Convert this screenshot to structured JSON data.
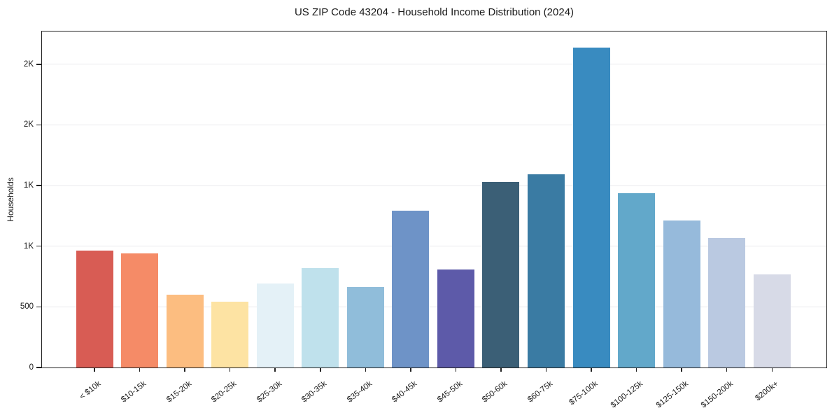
{
  "chart_data": {
    "type": "bar",
    "title": "US ZIP Code 43204 - Household Income Distribution (2024)",
    "xlabel": "",
    "ylabel": "Households",
    "categories": [
      "< $10k",
      "$10-15k",
      "$15-20k",
      "$20-25k",
      "$25-30k",
      "$30-35k",
      "$35-40k",
      "$40-45k",
      "$45-50k",
      "$50-60k",
      "$60-75k",
      "$75-100k",
      "$100-125k",
      "$125-150k",
      "$150-200k",
      "$200k+"
    ],
    "values": [
      965,
      940,
      600,
      545,
      690,
      820,
      665,
      1290,
      810,
      1530,
      1595,
      2640,
      1435,
      1210,
      1070,
      765
    ],
    "bar_colors": [
      "#d85c54",
      "#f58b67",
      "#fcbd80",
      "#fde3a3",
      "#e4f1f7",
      "#bfe1ec",
      "#90bdda",
      "#6e93c7",
      "#5d5aa9",
      "#3b5f76",
      "#3a7ba3",
      "#398bc0",
      "#62a8ca",
      "#96badb",
      "#bac9e1",
      "#d7dae7"
    ],
    "ylim": [
      0,
      2770
    ],
    "yticks": [
      {
        "value": 0,
        "label": "0"
      },
      {
        "value": 500,
        "label": "500"
      },
      {
        "value": 1000,
        "label": "1K"
      },
      {
        "value": 1500,
        "label": "1K"
      },
      {
        "value": 2000,
        "label": "2K"
      },
      {
        "value": 2500,
        "label": "2K"
      }
    ],
    "grid": "horizontal-only",
    "legend": "none",
    "x_tick_rotation_deg": 38
  },
  "colors": {
    "background": "#ffffff",
    "gridline": "#e9e9ed",
    "spine": "#222222",
    "text": "#1a1a1a"
  }
}
